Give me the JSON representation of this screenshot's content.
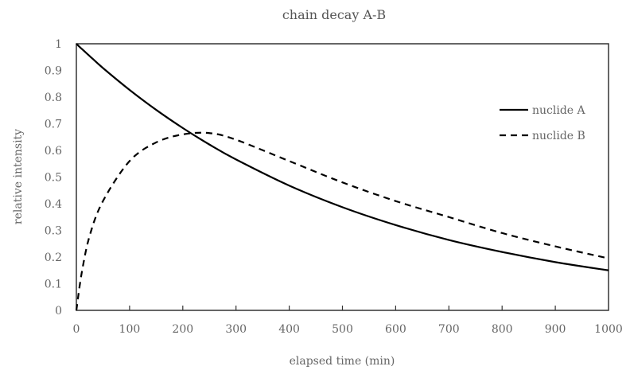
{
  "chart_data": {
    "type": "line",
    "title": "chain decay A-B",
    "xlabel": "elapsed time (min)",
    "ylabel": "relative intensity",
    "xlim": [
      0,
      1000
    ],
    "ylim": [
      0,
      1
    ],
    "xticks": [
      "0",
      "100",
      "200",
      "300",
      "400",
      "500",
      "600",
      "700",
      "800",
      "900",
      "1000"
    ],
    "yticks": [
      "0",
      "0.1",
      "0.2",
      "0.3",
      "0.4",
      "0.5",
      "0.6",
      "0.7",
      "0.8",
      "0.9",
      "1"
    ],
    "grid": false,
    "legend": "top-right",
    "x": [
      0,
      10,
      25,
      50,
      100,
      150,
      200,
      250,
      300,
      400,
      500,
      600,
      700,
      800,
      900,
      1000
    ],
    "series": [
      {
        "name": "nuclide A",
        "style": "solid",
        "color": "#000000",
        "values": [
          1,
          0.981,
          0.954,
          0.909,
          0.827,
          0.752,
          0.684,
          0.622,
          0.566,
          0.468,
          0.387,
          0.32,
          0.264,
          0.219,
          0.181,
          0.15
        ]
      },
      {
        "name": "nuclide B",
        "style": "dashed",
        "color": "#000000",
        "values": [
          0,
          0.14,
          0.28,
          0.41,
          0.56,
          0.63,
          0.66,
          0.665,
          0.64,
          0.56,
          0.48,
          0.41,
          0.35,
          0.29,
          0.24,
          0.195
        ]
      }
    ]
  }
}
